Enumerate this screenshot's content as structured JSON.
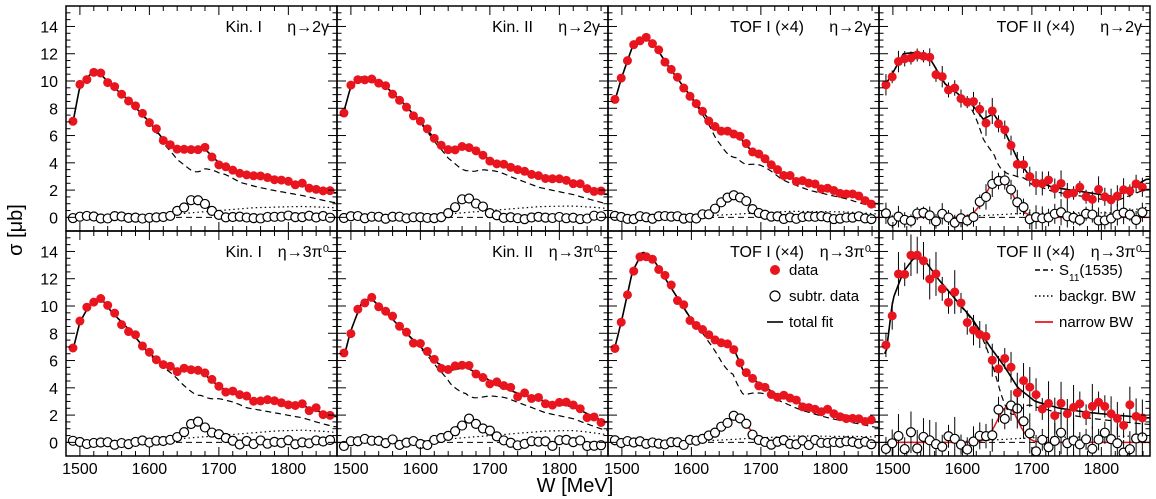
{
  "figure": {
    "ylabel": "σ [μb]",
    "xlabel": "W [MeV]",
    "x_ticks": [
      1500,
      1600,
      1700,
      1800
    ],
    "y_ticks": [
      0,
      2,
      4,
      6,
      8,
      10,
      12,
      14
    ],
    "xlim": [
      1480,
      1870
    ],
    "ylim": [
      -1,
      15.5
    ],
    "colors": {
      "data": "#e8141e",
      "narrow": "#e8141e",
      "line": "#000000"
    }
  },
  "legend_left": [
    {
      "label": "data",
      "marker": "filled-circle"
    },
    {
      "label": "subtr. data",
      "marker": "open-circle"
    },
    {
      "label": "total fit",
      "marker": "solid-line"
    }
  ],
  "legend_right": [
    {
      "label": "S",
      "sub": "11",
      "suffix": "(1535)",
      "marker": "dashed-line"
    },
    {
      "label": "backgr. BW",
      "marker": "dotted-line"
    },
    {
      "label": "narrow BW",
      "marker": "red-line"
    }
  ],
  "chart_data": [
    {
      "type": "scatter",
      "title": "Kin. I",
      "reaction": "η→2γ",
      "scale": 1.0,
      "bump_amp": 1.3,
      "bump_w": 1667,
      "bump_sigma": 18,
      "noise": 0.15,
      "err": 0.15,
      "anchors": [
        [
          1490,
          7.0
        ],
        [
          1500,
          9.6
        ],
        [
          1515,
          10.5
        ],
        [
          1528,
          10.6
        ],
        [
          1545,
          9.7
        ],
        [
          1570,
          8.6
        ],
        [
          1600,
          7.0
        ],
        [
          1625,
          5.4
        ],
        [
          1640,
          4.9
        ],
        [
          1655,
          5.0
        ],
        [
          1665,
          5.0
        ],
        [
          1680,
          5.0
        ],
        [
          1700,
          4.0
        ],
        [
          1730,
          3.2
        ],
        [
          1770,
          2.8
        ],
        [
          1820,
          2.4
        ],
        [
          1865,
          1.8
        ]
      ]
    },
    {
      "type": "scatter",
      "title": "Kin. II",
      "reaction": "η→2γ",
      "scale": 1.0,
      "bump_amp": 1.4,
      "bump_w": 1668,
      "bump_sigma": 18,
      "noise": 0.15,
      "err": 0.15,
      "anchors": [
        [
          1490,
          7.8
        ],
        [
          1500,
          9.6
        ],
        [
          1515,
          10.3
        ],
        [
          1530,
          10.1
        ],
        [
          1550,
          9.6
        ],
        [
          1575,
          8.4
        ],
        [
          1600,
          7.0
        ],
        [
          1625,
          5.5
        ],
        [
          1640,
          5.0
        ],
        [
          1655,
          5.1
        ],
        [
          1670,
          5.2
        ],
        [
          1685,
          4.8
        ],
        [
          1700,
          4.2
        ],
        [
          1730,
          3.6
        ],
        [
          1770,
          3.0
        ],
        [
          1820,
          2.5
        ],
        [
          1865,
          1.7
        ]
      ]
    },
    {
      "type": "scatter",
      "title": "TOF I (×4)",
      "reaction": "η→2γ",
      "scale": 4.0,
      "bump_amp": 1.6,
      "bump_w": 1662,
      "bump_sigma": 20,
      "noise": 0.15,
      "err": 0.2,
      "anchors": [
        [
          1490,
          8.6
        ],
        [
          1500,
          10.3
        ],
        [
          1515,
          12.5
        ],
        [
          1530,
          13.2
        ],
        [
          1545,
          12.8
        ],
        [
          1565,
          11.2
        ],
        [
          1590,
          9.5
        ],
        [
          1615,
          7.8
        ],
        [
          1635,
          6.6
        ],
        [
          1650,
          6.3
        ],
        [
          1665,
          6.2
        ],
        [
          1680,
          5.2
        ],
        [
          1700,
          4.4
        ],
        [
          1730,
          3.2
        ],
        [
          1770,
          2.4
        ],
        [
          1820,
          1.8
        ],
        [
          1865,
          1.0
        ]
      ]
    },
    {
      "type": "scatter",
      "title": "TOF II (×4)",
      "reaction": "η→2γ",
      "scale": 4.0,
      "bump_amp": 3.0,
      "bump_w": 1653,
      "bump_sigma": 18,
      "noise": 0.45,
      "err": 0.7,
      "anchors": [
        [
          1490,
          9.8
        ],
        [
          1500,
          10.6
        ],
        [
          1515,
          12.0
        ],
        [
          1535,
          12.1
        ],
        [
          1555,
          11.5
        ],
        [
          1575,
          9.8
        ],
        [
          1600,
          8.8
        ],
        [
          1615,
          8.2
        ],
        [
          1630,
          7.2
        ],
        [
          1645,
          7.6
        ],
        [
          1660,
          6.4
        ],
        [
          1680,
          4.2
        ],
        [
          1700,
          2.8
        ],
        [
          1730,
          2.2
        ],
        [
          1770,
          1.9
        ],
        [
          1820,
          1.5
        ],
        [
          1865,
          2.8
        ]
      ]
    },
    {
      "type": "scatter",
      "title": "Kin. I",
      "reaction": "η→3π⁰",
      "scale": 1.0,
      "bump_amp": 1.4,
      "bump_w": 1670,
      "bump_sigma": 20,
      "noise": 0.2,
      "err": 0.2,
      "anchors": [
        [
          1490,
          6.8
        ],
        [
          1500,
          8.8
        ],
        [
          1515,
          10.2
        ],
        [
          1530,
          10.6
        ],
        [
          1545,
          9.6
        ],
        [
          1570,
          8.3
        ],
        [
          1600,
          6.5
        ],
        [
          1625,
          5.6
        ],
        [
          1645,
          5.3
        ],
        [
          1660,
          5.3
        ],
        [
          1675,
          5.2
        ],
        [
          1690,
          4.5
        ],
        [
          1710,
          3.8
        ],
        [
          1740,
          3.2
        ],
        [
          1780,
          3.0
        ],
        [
          1820,
          2.7
        ],
        [
          1865,
          1.9
        ]
      ]
    },
    {
      "type": "scatter",
      "title": "Kin. II",
      "reaction": "η→3π⁰",
      "scale": 1.0,
      "bump_amp": 1.6,
      "bump_w": 1670,
      "bump_sigma": 22,
      "noise": 0.3,
      "err": 0.25,
      "anchors": [
        [
          1490,
          6.3
        ],
        [
          1500,
          8.2
        ],
        [
          1515,
          10.2
        ],
        [
          1528,
          10.6
        ],
        [
          1545,
          9.8
        ],
        [
          1570,
          8.5
        ],
        [
          1600,
          7.0
        ],
        [
          1625,
          5.8
        ],
        [
          1645,
          5.3
        ],
        [
          1665,
          5.5
        ],
        [
          1685,
          5.0
        ],
        [
          1710,
          4.2
        ],
        [
          1740,
          3.6
        ],
        [
          1780,
          3.0
        ],
        [
          1820,
          2.6
        ],
        [
          1865,
          1.5
        ]
      ]
    },
    {
      "type": "scatter",
      "title": "TOF I (×4)",
      "reaction": "η→3π⁰",
      "scale": 4.0,
      "bump_amp": 1.8,
      "bump_w": 1662,
      "bump_sigma": 20,
      "noise": 0.25,
      "err": 0.35,
      "anchors": [
        [
          1490,
          7.0
        ],
        [
          1500,
          9.0
        ],
        [
          1515,
          12.5
        ],
        [
          1530,
          14.0
        ],
        [
          1548,
          13.2
        ],
        [
          1570,
          11.4
        ],
        [
          1600,
          9.0
        ],
        [
          1625,
          7.8
        ],
        [
          1645,
          7.2
        ],
        [
          1660,
          7.0
        ],
        [
          1675,
          5.2
        ],
        [
          1695,
          4.4
        ],
        [
          1720,
          3.6
        ],
        [
          1760,
          2.8
        ],
        [
          1800,
          2.2
        ],
        [
          1840,
          1.8
        ],
        [
          1865,
          1.5
        ]
      ]
    },
    {
      "type": "scatter",
      "title": "TOF II (×4)",
      "reaction": "η→3π⁰",
      "scale": 4.0,
      "bump_amp": 2.6,
      "bump_w": 1665,
      "bump_sigma": 15,
      "noise": 0.9,
      "err": 1.2,
      "anchors": [
        [
          1490,
          6.5
        ],
        [
          1500,
          10.5
        ],
        [
          1515,
          12.5
        ],
        [
          1530,
          13.5
        ],
        [
          1545,
          13.4
        ],
        [
          1565,
          12.0
        ],
        [
          1590,
          10.5
        ],
        [
          1615,
          9.0
        ],
        [
          1640,
          7.0
        ],
        [
          1660,
          5.6
        ],
        [
          1680,
          4.0
        ],
        [
          1705,
          3.0
        ],
        [
          1740,
          2.5
        ],
        [
          1780,
          2.2
        ],
        [
          1820,
          2.0
        ],
        [
          1865,
          1.8
        ]
      ]
    }
  ]
}
